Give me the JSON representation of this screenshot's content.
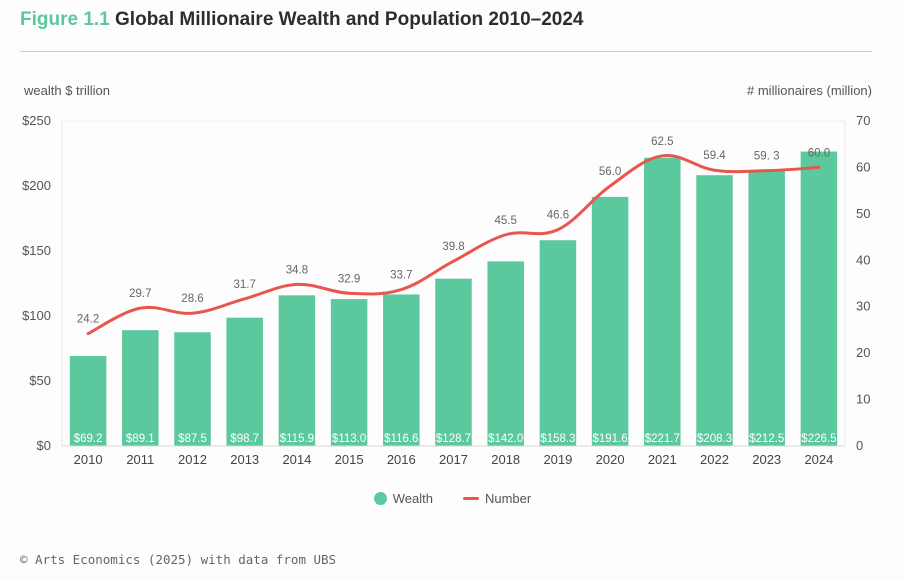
{
  "header": {
    "figure_label": "Figure 1.1",
    "title": "Global Millionaire Wealth and Population 2010–2024"
  },
  "source": "© Arts Economics (2025) with data from UBS",
  "colors": {
    "bar": "#5cc89d",
    "line": "#e8574e",
    "accent": "#5cc89d"
  },
  "chart_data": {
    "type": "bar",
    "categories": [
      "2010",
      "2011",
      "2012",
      "2013",
      "2014",
      "2015",
      "2016",
      "2017",
      "2018",
      "2019",
      "2020",
      "2021",
      "2022",
      "2023",
      "2024"
    ],
    "series": [
      {
        "name": "Wealth",
        "type": "bar",
        "axis": "left",
        "values": [
          69.2,
          89.1,
          87.5,
          98.7,
          115.9,
          113.0,
          116.6,
          128.7,
          142.0,
          158.3,
          191.6,
          221.7,
          208.3,
          212.5,
          226.5
        ],
        "labels": [
          "$69.2",
          "$89.1",
          "$87.5",
          "$98.7",
          "$115.9",
          "$113.0",
          "$116.6",
          "$128.7",
          "$142.0",
          "$158.3",
          "$191.6",
          "$221.7",
          "$208.3",
          "$212.5",
          "$226.5"
        ]
      },
      {
        "name": "Number",
        "type": "line",
        "axis": "right",
        "values": [
          24.2,
          29.7,
          28.6,
          31.7,
          34.8,
          32.9,
          33.7,
          39.8,
          45.5,
          46.6,
          56.0,
          62.5,
          59.4,
          59.3,
          60.0
        ],
        "labels": [
          "24.2",
          "29.7",
          "28.6",
          "31.7",
          "34.8",
          "32.9",
          "33.7",
          "39.8",
          "45.5",
          "46.6",
          "56.0",
          "62.5",
          "59.4",
          "59. 3",
          "60.0"
        ]
      }
    ],
    "ylabel_left": "wealth $ trillion",
    "ylabel_right": "# millionaires (million)",
    "ylim_left": [
      0,
      250
    ],
    "ylim_right": [
      0,
      70
    ],
    "yticks_left": [
      "$0",
      "$50",
      "$100",
      "$150",
      "$200",
      "$250"
    ],
    "yticks_right": [
      "0",
      "10",
      "20",
      "30",
      "40",
      "50",
      "60",
      "70"
    ],
    "legend": "bottom-center",
    "grid": false
  }
}
